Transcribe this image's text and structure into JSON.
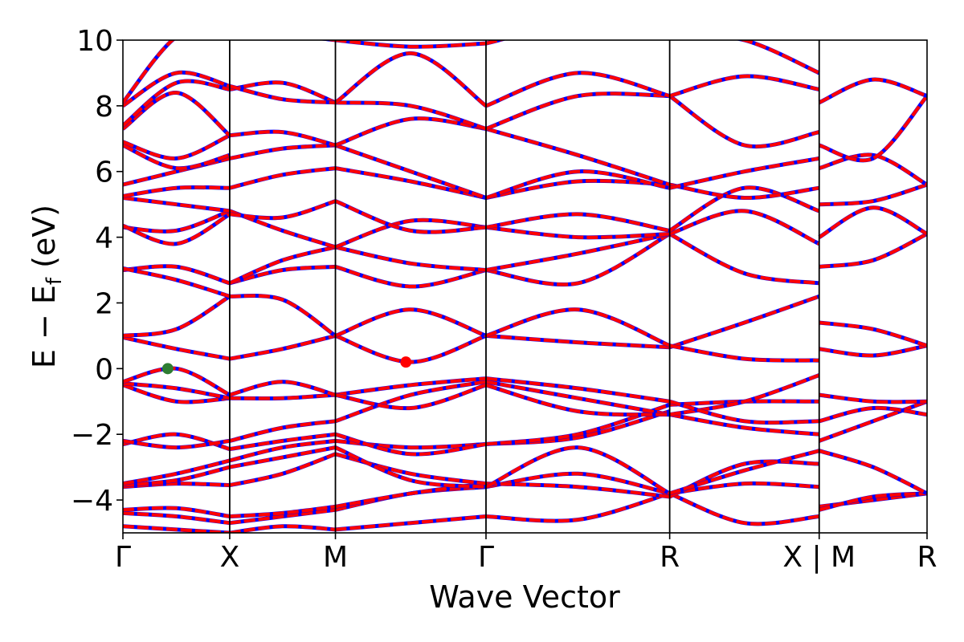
{
  "chart_data": {
    "type": "line",
    "title": "",
    "xlabel": "Wave Vector",
    "ylabel_main": "E − E",
    "ylabel_sub": "f",
    "ylabel_tail": " (eV)",
    "ylim": [
      -5,
      10
    ],
    "yticks": [
      -4,
      -2,
      0,
      2,
      4,
      6,
      8,
      10
    ],
    "ytick_labels": [
      "−4",
      "−2",
      "0",
      "2",
      "4",
      "6",
      "8",
      "10"
    ],
    "xlim": [
      0,
      7.53
    ],
    "kpoints": [
      {
        "label": "Γ",
        "x": 0.0
      },
      {
        "label": "X",
        "x": 1.0
      },
      {
        "label": "M",
        "x": 1.99
      },
      {
        "label": "Γ",
        "x": 3.4
      },
      {
        "label": "R",
        "x": 5.12
      },
      {
        "label": "X | M",
        "x": 6.52
      },
      {
        "label": "R",
        "x": 7.53
      }
    ],
    "band_colors": {
      "solid": "#ff0000",
      "dashed": "#0000ff"
    },
    "markers": [
      {
        "name": "VBM",
        "x": 0.42,
        "y": 0.0,
        "color": "#2e7d32"
      },
      {
        "name": "CBM",
        "x": 2.65,
        "y": 0.2,
        "color": "#ff0000"
      }
    ],
    "segments": [
      {
        "x_start": 0.0,
        "x_end": 1.0,
        "bands": [
          [
            -4.8,
            -4.9,
            -5.0
          ],
          [
            -4.4,
            -4.5,
            -4.7
          ],
          [
            -4.3,
            -4.25,
            -4.5
          ],
          [
            -3.6,
            -3.5,
            -3.55
          ],
          [
            -3.55,
            -3.4,
            -3.0
          ],
          [
            -3.5,
            -3.2,
            -2.8
          ],
          [
            -2.3,
            -2.0,
            -2.45
          ],
          [
            -2.2,
            -2.4,
            -2.2
          ],
          [
            -0.5,
            -1.0,
            -0.9
          ],
          [
            -0.45,
            -0.6,
            -0.9
          ],
          [
            -0.4,
            0.0,
            -0.8
          ],
          [
            0.95,
            0.6,
            0.3
          ],
          [
            1.0,
            1.2,
            2.2
          ],
          [
            3.0,
            3.1,
            2.6
          ],
          [
            3.05,
            2.7,
            2.2
          ],
          [
            4.3,
            4.2,
            4.8
          ],
          [
            4.35,
            3.8,
            4.7
          ],
          [
            5.2,
            5.0,
            4.8
          ],
          [
            5.25,
            5.5,
            5.5
          ],
          [
            5.6,
            6.0,
            6.4
          ],
          [
            6.8,
            6.1,
            6.5
          ],
          [
            6.9,
            6.4,
            7.1
          ],
          [
            7.3,
            8.4,
            7.1
          ],
          [
            7.4,
            8.7,
            8.5
          ],
          [
            8.0,
            9.0,
            8.6
          ],
          [
            8.1,
            10.1,
            10.5
          ]
        ]
      },
      {
        "x_start": 1.0,
        "x_end": 1.99,
        "bands": [
          [
            -5.0,
            -4.8,
            -4.9
          ],
          [
            -4.7,
            -4.5,
            -4.3
          ],
          [
            -4.5,
            -4.4,
            -4.2
          ],
          [
            -3.55,
            -3.2,
            -2.6
          ],
          [
            -3.0,
            -2.7,
            -2.4
          ],
          [
            -2.8,
            -2.4,
            -2.2
          ],
          [
            -2.45,
            -2.2,
            -2.0
          ],
          [
            -2.2,
            -1.8,
            -1.6
          ],
          [
            -0.9,
            -0.9,
            -0.8
          ],
          [
            -0.8,
            -0.4,
            -0.8
          ],
          [
            0.3,
            0.6,
            1.0
          ],
          [
            2.2,
            2.1,
            1.0
          ],
          [
            2.6,
            3.0,
            3.1
          ],
          [
            2.6,
            3.3,
            3.7
          ],
          [
            4.8,
            4.2,
            3.7
          ],
          [
            4.7,
            4.6,
            5.1
          ],
          [
            5.5,
            5.9,
            6.1
          ],
          [
            6.4,
            6.7,
            6.8
          ],
          [
            7.1,
            7.2,
            6.8
          ],
          [
            8.5,
            8.7,
            8.1
          ],
          [
            8.6,
            8.2,
            8.1
          ],
          [
            10.5,
            10.2,
            10.0
          ]
        ]
      },
      {
        "x_start": 1.99,
        "x_end": 3.4,
        "bands": [
          [
            -4.9,
            -4.7,
            -4.5
          ],
          [
            -4.3,
            -3.8,
            -3.6
          ],
          [
            -4.2,
            -3.8,
            -3.5
          ],
          [
            -2.6,
            -3.2,
            -3.5
          ],
          [
            -2.4,
            -3.4,
            -3.6
          ],
          [
            -2.2,
            -2.4,
            -2.3
          ],
          [
            -2.0,
            -2.6,
            -2.3
          ],
          [
            -1.6,
            -0.8,
            -0.4
          ],
          [
            -0.8,
            -0.5,
            -0.3
          ],
          [
            -0.8,
            -1.2,
            -0.5
          ],
          [
            1.0,
            0.2,
            1.0
          ],
          [
            1.0,
            1.8,
            1.0
          ],
          [
            3.1,
            2.5,
            3.0
          ],
          [
            3.7,
            3.2,
            3.0
          ],
          [
            3.7,
            4.5,
            4.3
          ],
          [
            5.1,
            4.2,
            4.3
          ],
          [
            6.1,
            5.7,
            5.2
          ],
          [
            6.8,
            6.0,
            5.2
          ],
          [
            6.8,
            7.6,
            7.3
          ],
          [
            8.1,
            8.0,
            7.3
          ],
          [
            8.1,
            9.6,
            8.0
          ],
          [
            10.0,
            9.8,
            9.9
          ]
        ]
      },
      {
        "x_start": 3.4,
        "x_end": 5.12,
        "bands": [
          [
            -4.5,
            -4.6,
            -3.8
          ],
          [
            -3.6,
            -3.2,
            -3.8
          ],
          [
            -3.5,
            -3.6,
            -3.9
          ],
          [
            -3.6,
            -2.4,
            -3.8
          ],
          [
            -2.3,
            -2.1,
            -1.3
          ],
          [
            -2.3,
            -2.0,
            -1.1
          ],
          [
            -0.4,
            -0.9,
            -1.4
          ],
          [
            -0.3,
            -0.6,
            -1.0
          ],
          [
            -0.5,
            -1.3,
            -1.4
          ],
          [
            1.0,
            0.8,
            0.65
          ],
          [
            1.0,
            1.8,
            0.7
          ],
          [
            3.0,
            2.6,
            4.1
          ],
          [
            3.0,
            3.5,
            4.1
          ],
          [
            4.3,
            4.0,
            4.1
          ],
          [
            4.3,
            4.7,
            4.2
          ],
          [
            5.2,
            5.7,
            5.6
          ],
          [
            5.2,
            6.0,
            5.5
          ],
          [
            7.3,
            6.5,
            5.6
          ],
          [
            7.3,
            8.3,
            8.3
          ],
          [
            8.0,
            9.0,
            8.3
          ],
          [
            9.9,
            10.5,
            10.2
          ]
        ]
      },
      {
        "x_start": 5.12,
        "x_end": 6.52,
        "bands": [
          [
            -3.8,
            -4.7,
            -4.5
          ],
          [
            -3.8,
            -3.5,
            -3.6
          ],
          [
            -3.9,
            -2.9,
            -2.9
          ],
          [
            -3.8,
            -3.1,
            -2.5
          ],
          [
            -1.4,
            -1.8,
            -2.0
          ],
          [
            -1.1,
            -1.0,
            -1.0
          ],
          [
            -1.4,
            -1.0,
            -0.2
          ],
          [
            -1.0,
            -1.6,
            -1.6
          ],
          [
            0.65,
            1.4,
            2.2
          ],
          [
            0.7,
            0.3,
            0.25
          ],
          [
            4.1,
            2.9,
            2.6
          ],
          [
            4.1,
            4.8,
            3.8
          ],
          [
            4.2,
            5.5,
            4.8
          ],
          [
            5.6,
            5.2,
            5.5
          ],
          [
            5.5,
            6.0,
            6.4
          ],
          [
            8.3,
            6.8,
            7.2
          ],
          [
            8.3,
            8.9,
            8.5
          ],
          [
            10.2,
            10.0,
            9.0
          ]
        ]
      },
      {
        "x_start": 6.52,
        "x_end": 7.53,
        "bands": [
          [
            -4.2,
            -4.0,
            -3.8
          ],
          [
            -4.3,
            -3.9,
            -3.8
          ],
          [
            -2.5,
            -3.0,
            -3.8
          ],
          [
            -2.2,
            -1.6,
            -1.0
          ],
          [
            -1.6,
            -1.2,
            -1.4
          ],
          [
            -0.8,
            -1.0,
            -1.0
          ],
          [
            0.6,
            0.4,
            0.7
          ],
          [
            1.4,
            1.2,
            0.7
          ],
          [
            3.1,
            3.3,
            4.1
          ],
          [
            4.0,
            4.9,
            4.1
          ],
          [
            5.0,
            5.1,
            5.6
          ],
          [
            6.1,
            6.5,
            5.6
          ],
          [
            6.8,
            6.4,
            8.3
          ],
          [
            8.1,
            8.8,
            8.3
          ]
        ]
      }
    ]
  }
}
